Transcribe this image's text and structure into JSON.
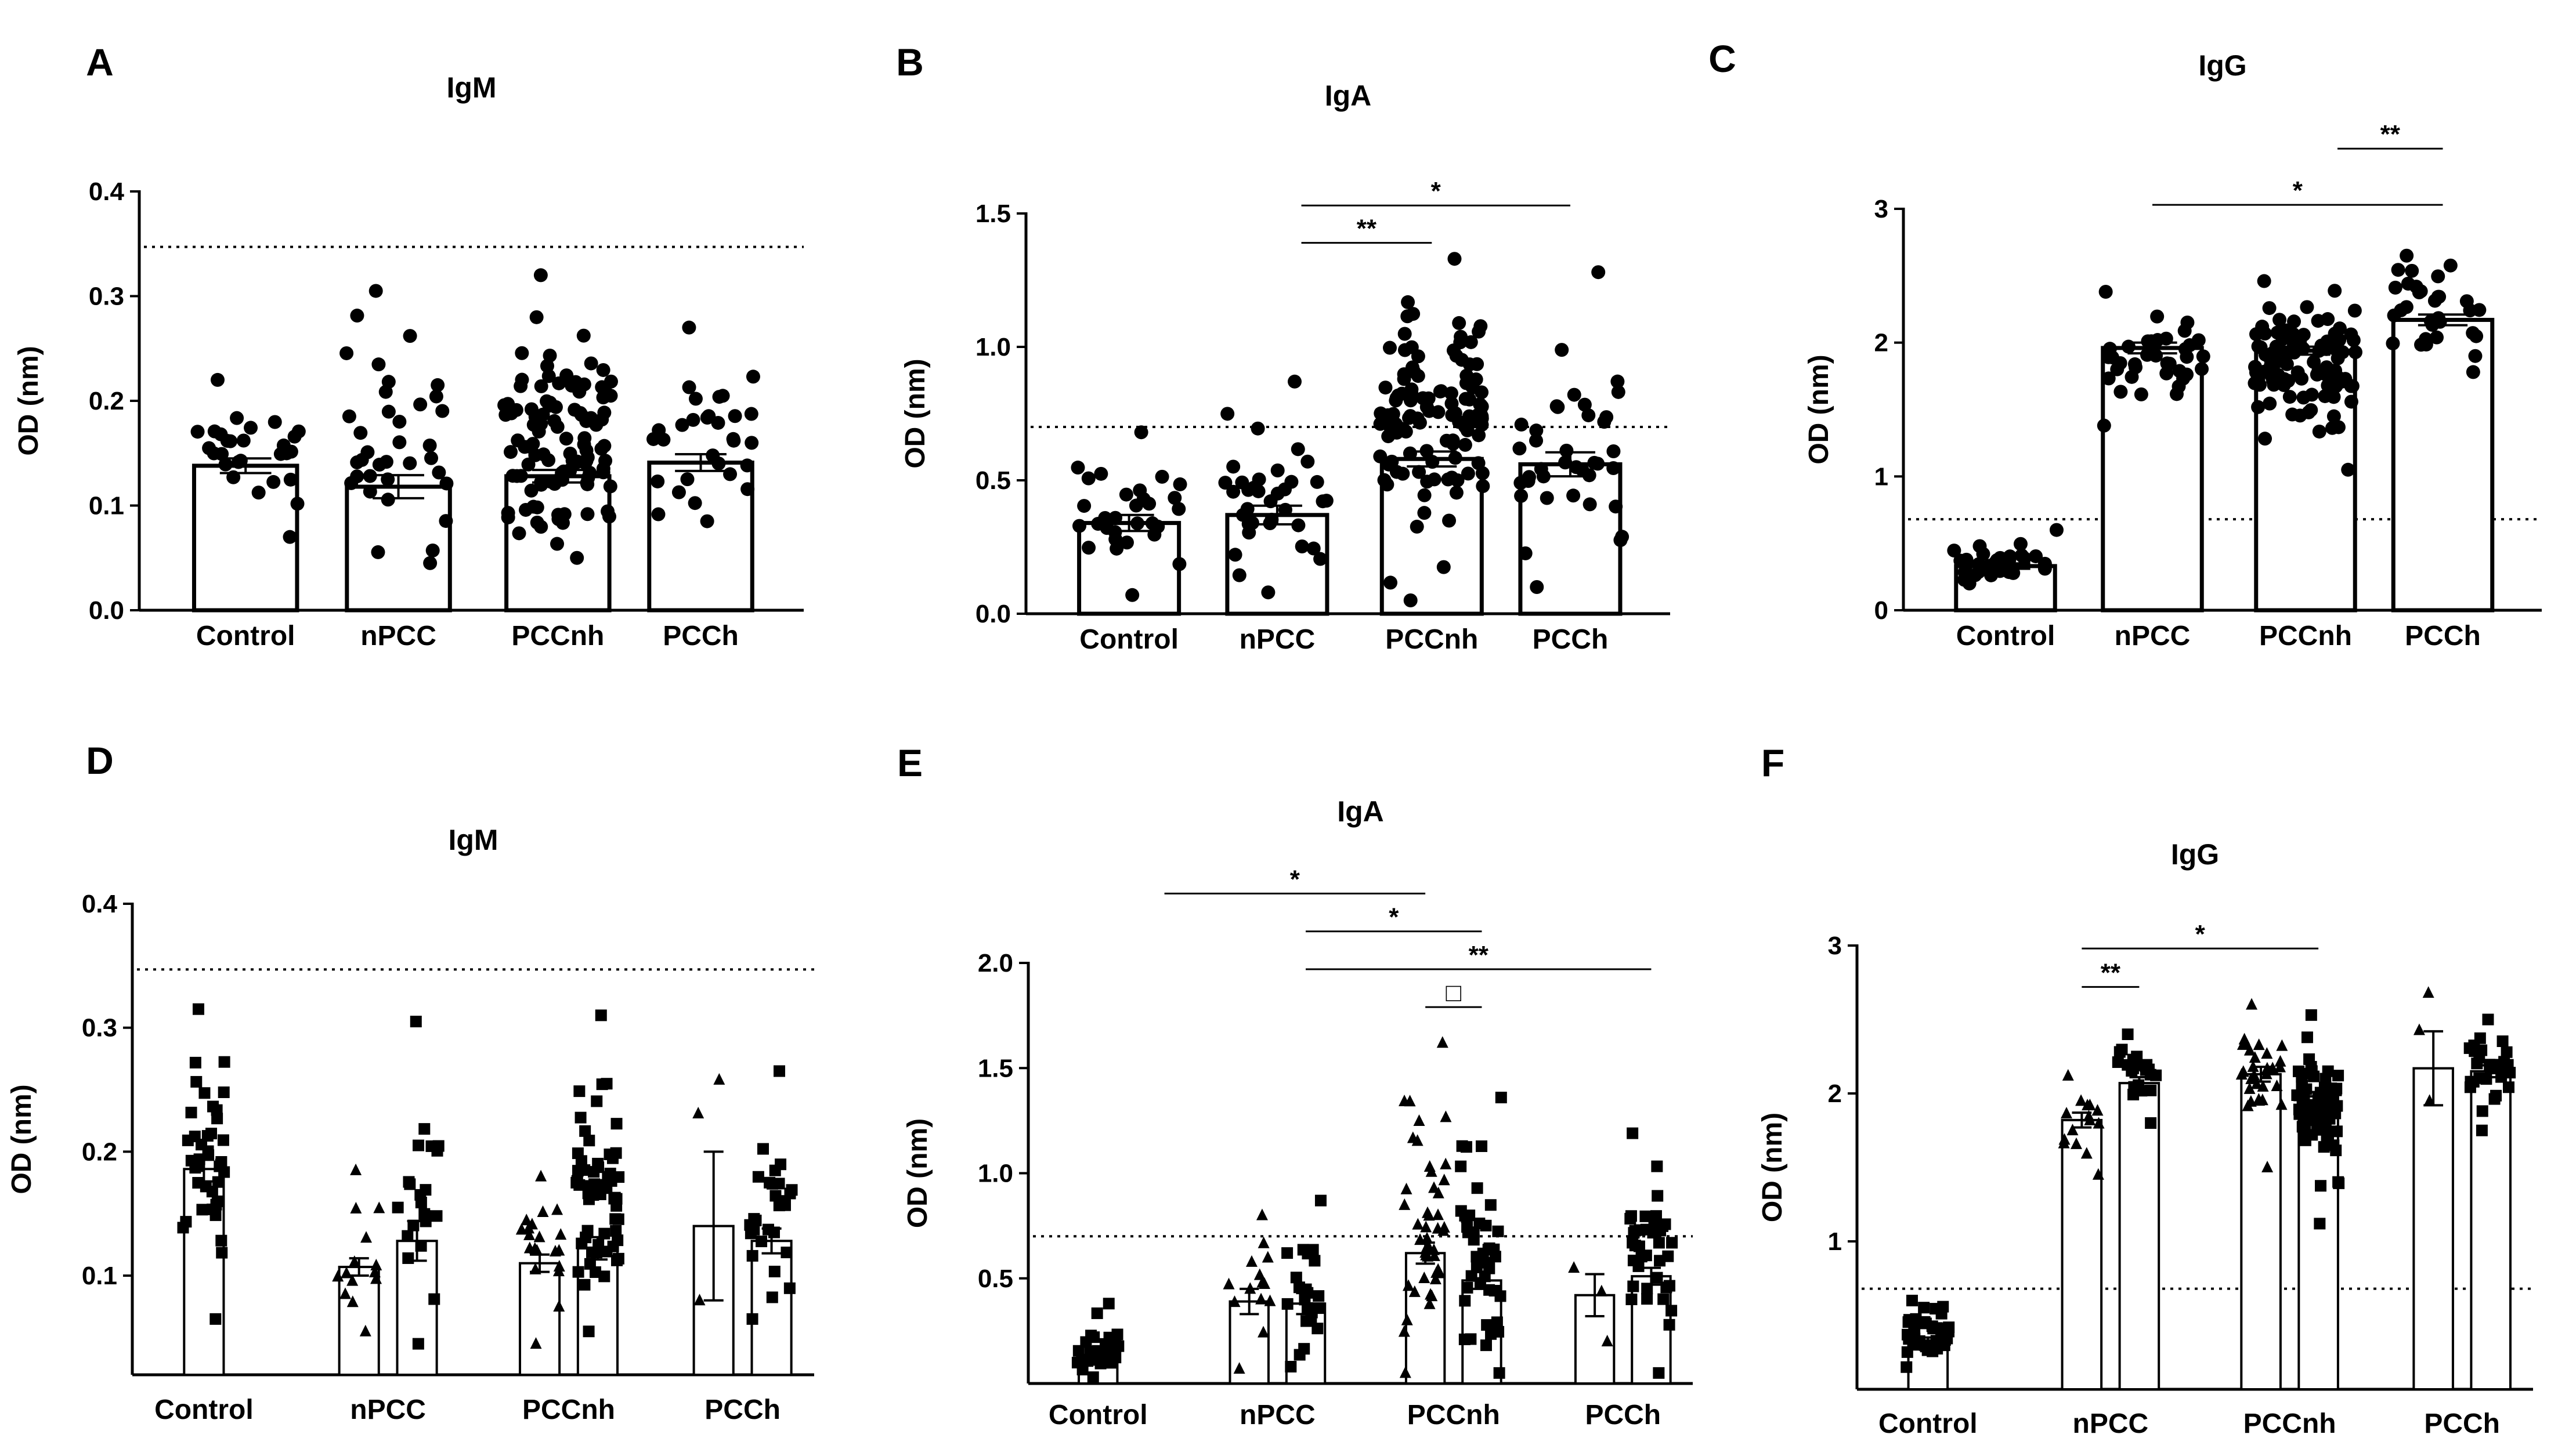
{
  "figure": {
    "background": "#ffffff",
    "ink": "#000000"
  },
  "chart_data": [
    {
      "panel": "A",
      "title": "IgM",
      "type": "bar",
      "ylabel": "OD (nm)",
      "ylim": [
        0,
        0.4
      ],
      "yticks": [
        "0.0",
        "0.1",
        "0.2",
        "0.3",
        "0.4"
      ],
      "tick_values": [
        0,
        0.1,
        0.2,
        0.3,
        0.4
      ],
      "categories": [
        "Control",
        "nPCC",
        "PCCnh",
        "PCCh"
      ],
      "cutoff": 0.347,
      "show_zero_baseline": true,
      "bars": [
        {
          "mean": 0.138,
          "sem": 0.007,
          "n": 28,
          "min": 0.07,
          "max": 0.22,
          "marker": "circle"
        },
        {
          "mean": 0.118,
          "sem": 0.011,
          "n": 36,
          "min": 0.045,
          "max": 0.305,
          "marker": "circle"
        },
        {
          "mean": 0.128,
          "sem": 0.006,
          "n": 110,
          "min": 0.05,
          "max": 0.32,
          "marker": "circle"
        },
        {
          "mean": 0.141,
          "sem": 0.008,
          "n": 30,
          "min": 0.085,
          "max": 0.27,
          "marker": "circle"
        }
      ],
      "significance": []
    },
    {
      "panel": "B",
      "title": "IgA",
      "type": "bar",
      "ylabel": "OD (nm)",
      "ylim": [
        0,
        1.5
      ],
      "yticks": [
        "0.0",
        "0.5",
        "1.0",
        "1.5"
      ],
      "tick_values": [
        0,
        0.5,
        1.0,
        1.5
      ],
      "categories": [
        "Control",
        "nPCC",
        "PCCnh",
        "PCCh"
      ],
      "cutoff": 0.7,
      "show_zero_baseline": true,
      "bars": [
        {
          "mean": 0.34,
          "sem": 0.03,
          "n": 30,
          "min": 0.07,
          "max": 0.68,
          "marker": "circle"
        },
        {
          "mean": 0.37,
          "sem": 0.035,
          "n": 36,
          "min": 0.08,
          "max": 0.87,
          "marker": "circle"
        },
        {
          "mean": 0.58,
          "sem": 0.028,
          "n": 115,
          "min": 0.05,
          "max": 1.33,
          "marker": "circle"
        },
        {
          "mean": 0.56,
          "sem": 0.045,
          "n": 38,
          "min": 0.1,
          "max": 1.28,
          "marker": "circle"
        }
      ],
      "significance": [
        {
          "label": "**",
          "from": 1.15,
          "to": 2.0,
          "y": 1.39
        },
        {
          "label": "*",
          "from": 1.15,
          "to": 3.0,
          "y": 1.53
        }
      ]
    },
    {
      "panel": "C",
      "title": "IgG",
      "type": "bar",
      "ylabel": "OD (nm)",
      "ylim": [
        0,
        3
      ],
      "yticks": [
        "0",
        "1",
        "2",
        "3"
      ],
      "tick_values": [
        0,
        1,
        2,
        3
      ],
      "categories": [
        "Control",
        "nPCC",
        "PCCnh",
        "PCCh"
      ],
      "cutoff": 0.68,
      "show_zero_baseline": true,
      "bars": [
        {
          "mean": 0.33,
          "sem": 0.02,
          "n": 34,
          "min": 0.2,
          "max": 0.6,
          "marker": "circle"
        },
        {
          "mean": 1.96,
          "sem": 0.04,
          "n": 38,
          "min": 1.38,
          "max": 2.38,
          "marker": "circle"
        },
        {
          "mean": 1.94,
          "sem": 0.03,
          "n": 110,
          "min": 1.05,
          "max": 2.46,
          "marker": "circle"
        },
        {
          "mean": 2.17,
          "sem": 0.04,
          "n": 32,
          "min": 1.78,
          "max": 2.65,
          "marker": "circle"
        }
      ],
      "significance": [
        {
          "label": "*",
          "from": 1.0,
          "to": 3.0,
          "y": 3.03
        },
        {
          "label": "**",
          "from": 2.2,
          "to": 3.0,
          "y": 3.45
        }
      ]
    },
    {
      "panel": "D",
      "title": "IgM",
      "type": "bar",
      "ylabel": "OD (nm)",
      "ylim": [
        0.02,
        0.4
      ],
      "yticks": [
        "0.1",
        "0.2",
        "0.3",
        "0.4"
      ],
      "tick_values": [
        0.1,
        0.2,
        0.3,
        0.4
      ],
      "categories": [
        "Control",
        "nPCC",
        "PCCnh",
        "PCCh"
      ],
      "cutoff": 0.347,
      "show_zero_baseline": false,
      "bars": [
        {
          "group": 0,
          "offset": 0,
          "mean": 0.186,
          "sem": 0.01,
          "n": 40,
          "min": 0.065,
          "max": 0.315,
          "marker": "square"
        },
        {
          "group": 1,
          "offset": -0.2,
          "mean": 0.107,
          "sem": 0.007,
          "n": 14,
          "min": 0.055,
          "max": 0.185,
          "marker": "triangle"
        },
        {
          "group": 1,
          "offset": 0.2,
          "mean": 0.128,
          "sem": 0.016,
          "n": 22,
          "min": 0.045,
          "max": 0.305,
          "marker": "square"
        },
        {
          "group": 2,
          "offset": -0.2,
          "mean": 0.11,
          "sem": 0.007,
          "n": 20,
          "min": 0.045,
          "max": 0.18,
          "marker": "triangle"
        },
        {
          "group": 2,
          "offset": 0.2,
          "mean": 0.122,
          "sem": 0.009,
          "n": 60,
          "min": 0.055,
          "max": 0.31,
          "marker": "square"
        },
        {
          "group": 3,
          "offset": -0.2,
          "mean": 0.14,
          "sem": 0.06,
          "n": 3,
          "min": 0.08,
          "max": 0.258,
          "marker": "triangle"
        },
        {
          "group": 3,
          "offset": 0.2,
          "mean": 0.128,
          "sem": 0.01,
          "n": 28,
          "min": 0.065,
          "max": 0.265,
          "marker": "square"
        }
      ],
      "significance": []
    },
    {
      "panel": "E",
      "title": "IgA",
      "type": "bar",
      "ylabel": "OD (nm)",
      "ylim": [
        0,
        2.0
      ],
      "yticks": [
        "0.5",
        "1.0",
        "1.5",
        "2.0"
      ],
      "tick_values": [
        0.5,
        1.0,
        1.5,
        2.0
      ],
      "categories": [
        "Control",
        "nPCC",
        "PCCnh",
        "PCCh"
      ],
      "cutoff": 0.7,
      "show_zero_baseline": false,
      "bars": [
        {
          "group": 0,
          "offset": 0,
          "mean": 0.1,
          "sem": 0.01,
          "n": 30,
          "min": 0.03,
          "max": 0.38,
          "marker": "square"
        },
        {
          "group": 1,
          "offset": -0.2,
          "mean": 0.39,
          "sem": 0.06,
          "n": 14,
          "min": 0.07,
          "max": 0.8,
          "marker": "triangle"
        },
        {
          "group": 1,
          "offset": 0.2,
          "mean": 0.38,
          "sem": 0.05,
          "n": 22,
          "min": 0.08,
          "max": 0.87,
          "marker": "square"
        },
        {
          "group": 2,
          "offset": -0.2,
          "mean": 0.62,
          "sem": 0.05,
          "n": 45,
          "min": 0.05,
          "max": 1.62,
          "marker": "triangle"
        },
        {
          "group": 2,
          "offset": 0.2,
          "mean": 0.49,
          "sem": 0.04,
          "n": 45,
          "min": 0.05,
          "max": 1.36,
          "marker": "square"
        },
        {
          "group": 3,
          "offset": -0.2,
          "mean": 0.42,
          "sem": 0.1,
          "n": 3,
          "min": 0.2,
          "max": 0.55,
          "marker": "triangle"
        },
        {
          "group": 3,
          "offset": 0.2,
          "mean": 0.51,
          "sem": 0.04,
          "n": 40,
          "min": 0.05,
          "max": 1.19,
          "marker": "square"
        }
      ],
      "significance": [
        {
          "label": "*",
          "from": 0.47,
          "to": 1.8,
          "y": 2.33
        },
        {
          "label": "*",
          "from": 1.2,
          "to": 2.2,
          "y": 2.15
        },
        {
          "label": "**",
          "from": 1.2,
          "to": 3.2,
          "y": 1.97
        },
        {
          "label": "□",
          "from": 1.8,
          "to": 2.2,
          "y": 1.79
        }
      ]
    },
    {
      "panel": "F",
      "title": "IgG",
      "type": "bar",
      "ylabel": "OD (nm)",
      "ylim": [
        0,
        3
      ],
      "yticks": [
        "1",
        "2",
        "3"
      ],
      "tick_values": [
        1,
        2,
        3
      ],
      "categories": [
        "Control",
        "nPCC",
        "PCCnh",
        "PCCh"
      ],
      "cutoff": 0.68,
      "show_zero_baseline": false,
      "bars": [
        {
          "group": 0,
          "offset": 0,
          "mean": 0.33,
          "sem": 0.02,
          "n": 38,
          "min": 0.15,
          "max": 0.6,
          "marker": "square"
        },
        {
          "group": 1,
          "offset": -0.2,
          "mean": 1.82,
          "sem": 0.05,
          "n": 15,
          "min": 1.45,
          "max": 2.12,
          "marker": "triangle"
        },
        {
          "group": 1,
          "offset": 0.2,
          "mean": 2.07,
          "sem": 0.04,
          "n": 22,
          "min": 1.8,
          "max": 2.4,
          "marker": "square"
        },
        {
          "group": 2,
          "offset": -0.2,
          "mean": 2.13,
          "sem": 0.05,
          "n": 30,
          "min": 1.5,
          "max": 2.6,
          "marker": "triangle"
        },
        {
          "group": 2,
          "offset": 0.2,
          "mean": 1.98,
          "sem": 0.03,
          "n": 70,
          "min": 1.12,
          "max": 2.53,
          "marker": "square"
        },
        {
          "group": 3,
          "offset": -0.2,
          "mean": 2.17,
          "sem": 0.25,
          "n": 3,
          "min": 1.95,
          "max": 2.68,
          "marker": "triangle"
        },
        {
          "group": 3,
          "offset": 0.2,
          "mean": 2.15,
          "sem": 0.04,
          "n": 28,
          "min": 1.75,
          "max": 2.5,
          "marker": "square"
        }
      ],
      "significance": [
        {
          "label": "**",
          "from": 0.8,
          "to": 1.2,
          "y": 2.72
        },
        {
          "label": "*",
          "from": 0.8,
          "to": 2.2,
          "y": 2.98
        }
      ]
    }
  ]
}
